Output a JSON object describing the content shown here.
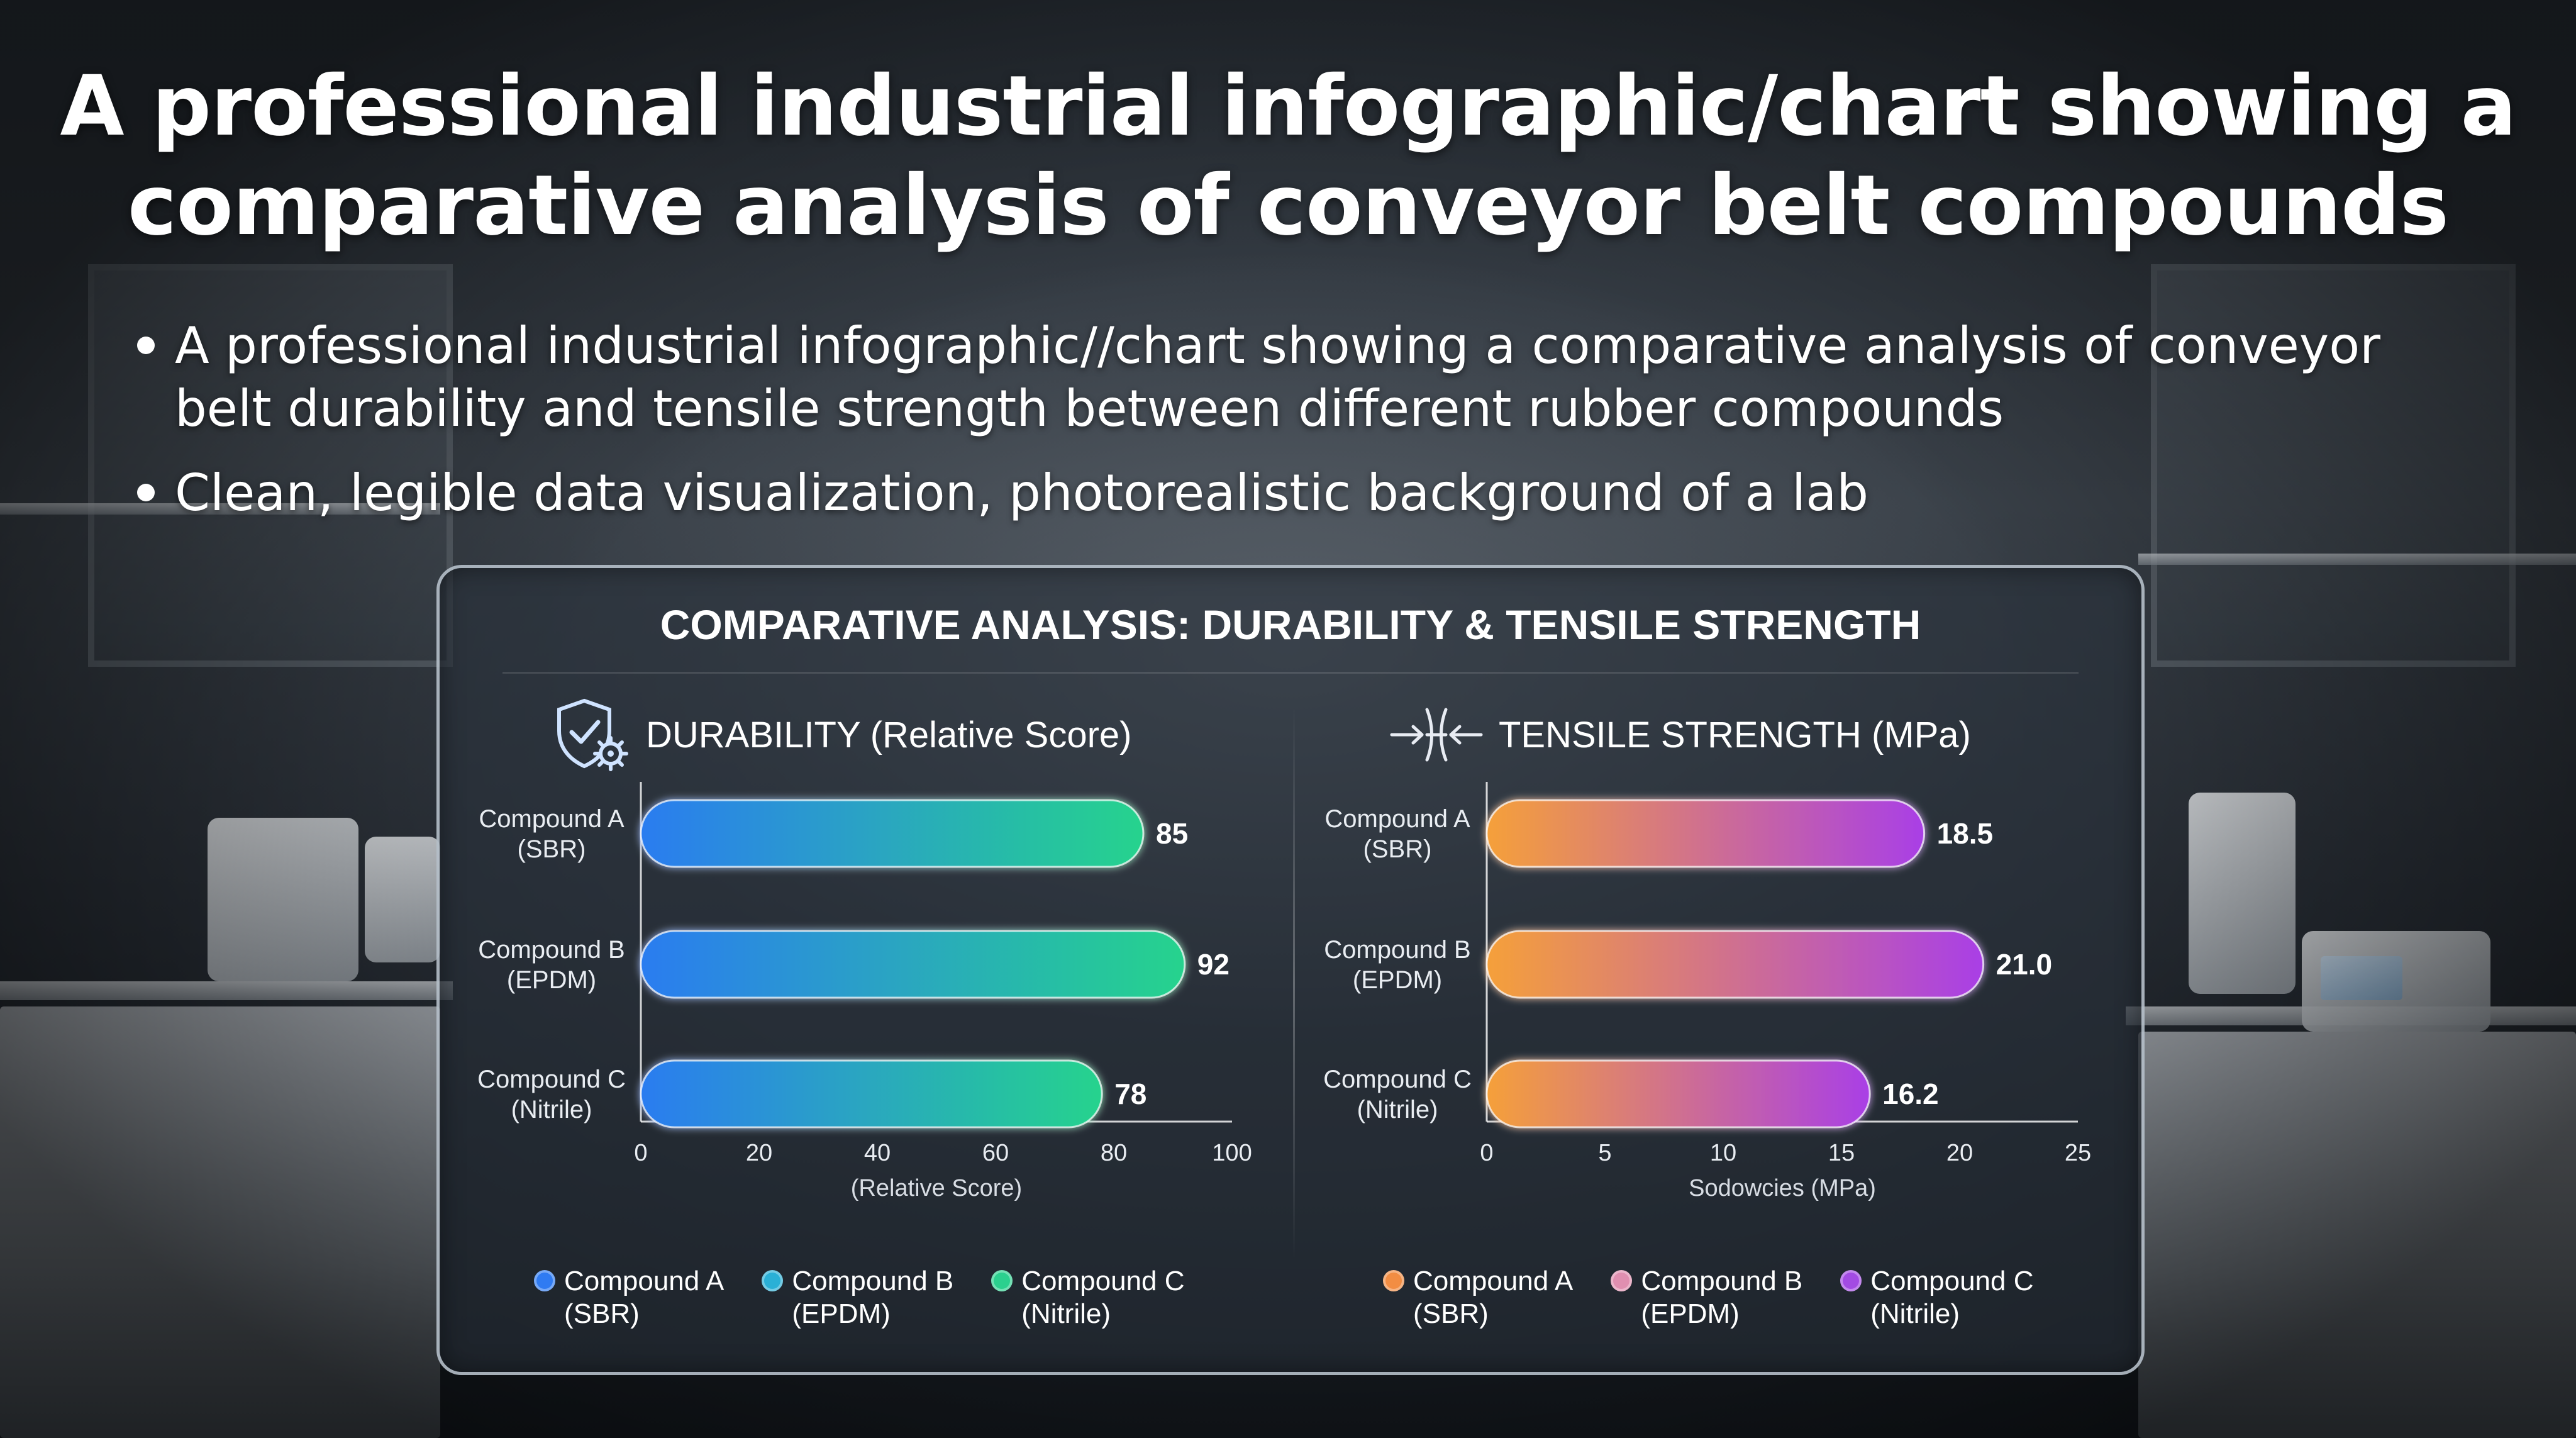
{
  "title": {
    "line1": "A professional industrial infographic/chart showing a",
    "line2": "comparative analysis of conveyor belt compounds"
  },
  "bullets": [
    "A professional industrial infographic//chart showing a comparative analysis of conveyor belt durability and tensile strength between different rubber compounds",
    "Clean, legible data visualization, photorealistic background of a lab"
  ],
  "panel_title": "COMPARATIVE ANALYSIS: DURABILITY & TENSILE STRENGTH",
  "icons": {
    "durability": "shield-gear-icon",
    "tensile": "tension-arrows-icon"
  },
  "chart_data": [
    {
      "type": "bar",
      "orientation": "horizontal",
      "title": "DURABILITY (Relative Score)",
      "categories": [
        "Compound A\n(SBR)",
        "Compound B\n(EPDM)",
        "Compound C\n(Nitrile)"
      ],
      "values": [
        85,
        92,
        78
      ],
      "value_labels": [
        "85",
        "92",
        "78"
      ],
      "xlabel": "(Relative Score)",
      "xlim": [
        0,
        100
      ],
      "xticks": [
        "0",
        "20",
        "40",
        "60",
        "80",
        "100"
      ],
      "gradient": [
        "#2b7cf0",
        "#27d38d"
      ],
      "legend": [
        {
          "label": "Compound A\n(SBR)",
          "color": "#2f7bf2"
        },
        {
          "label": "Compound B\n(EPDM)",
          "color": "#2ab0d6"
        },
        {
          "label": "Compound C\n(Nitrile)",
          "color": "#2bd08e"
        }
      ]
    },
    {
      "type": "bar",
      "orientation": "horizontal",
      "title": "TENSILE STRENGTH (MPa)",
      "categories": [
        "Compound A\n(SBR)",
        "Compound B\n(EPDM)",
        "Compound C\n(Nitrile)"
      ],
      "values": [
        18.5,
        21.0,
        16.2
      ],
      "value_labels": [
        "18.5",
        "21.0",
        "16.2"
      ],
      "xlabel": "Sodowcies (MPa)",
      "xlim": [
        0,
        25
      ],
      "xticks": [
        "0",
        "5",
        "10",
        "15",
        "20",
        "25"
      ],
      "gradient": [
        "#f5a03a",
        "#a93fe6"
      ],
      "legend": [
        {
          "label": "Compound A\n(SBR)",
          "color": "#f28d43"
        },
        {
          "label": "Compound B\n(EPDM)",
          "color": "#e08fb0"
        },
        {
          "label": "Compound C\n(Nitrile)",
          "color": "#a34be3"
        }
      ]
    }
  ]
}
